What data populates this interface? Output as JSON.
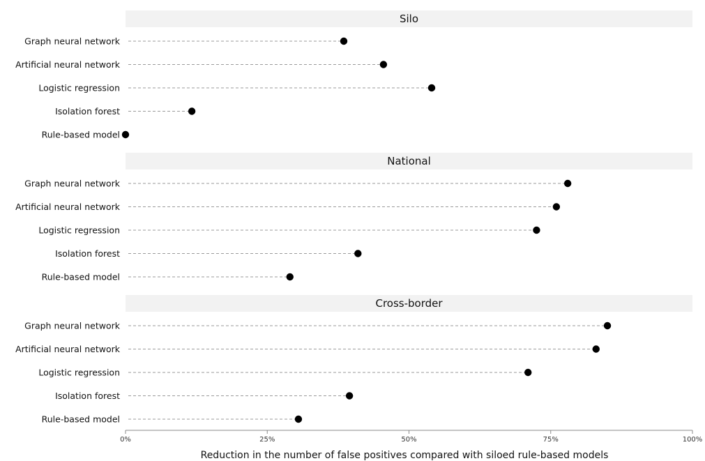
{
  "chart_data": {
    "type": "scatter",
    "xlabel": "Reduction in the number of false positives compared with siloed rule-based models",
    "xlim": [
      0,
      100
    ],
    "x_ticks": [
      "0%",
      "25%",
      "50%",
      "75%",
      "100%"
    ],
    "x_tick_values": [
      0,
      25,
      50,
      75,
      100
    ],
    "marker_color": "#000000",
    "panels": [
      {
        "title": "Silo",
        "points": [
          {
            "label": "Graph neural network",
            "value": 38.5
          },
          {
            "label": "Artificial neural network",
            "value": 45.5
          },
          {
            "label": "Logistic regression",
            "value": 54
          },
          {
            "label": "Isolation forest",
            "value": 11.7
          },
          {
            "label": "Rule-based model",
            "value": 0
          }
        ]
      },
      {
        "title": "National",
        "points": [
          {
            "label": "Graph neural network",
            "value": 78
          },
          {
            "label": "Artificial neural network",
            "value": 76
          },
          {
            "label": "Logistic regression",
            "value": 72.5
          },
          {
            "label": "Isolation forest",
            "value": 41
          },
          {
            "label": "Rule-based model",
            "value": 29
          }
        ]
      },
      {
        "title": "Cross-border",
        "points": [
          {
            "label": "Graph neural network",
            "value": 85
          },
          {
            "label": "Artificial neural network",
            "value": 83
          },
          {
            "label": "Logistic regression",
            "value": 71
          },
          {
            "label": "Isolation forest",
            "value": 39.5
          },
          {
            "label": "Rule-based model",
            "value": 30.5
          }
        ]
      }
    ]
  }
}
